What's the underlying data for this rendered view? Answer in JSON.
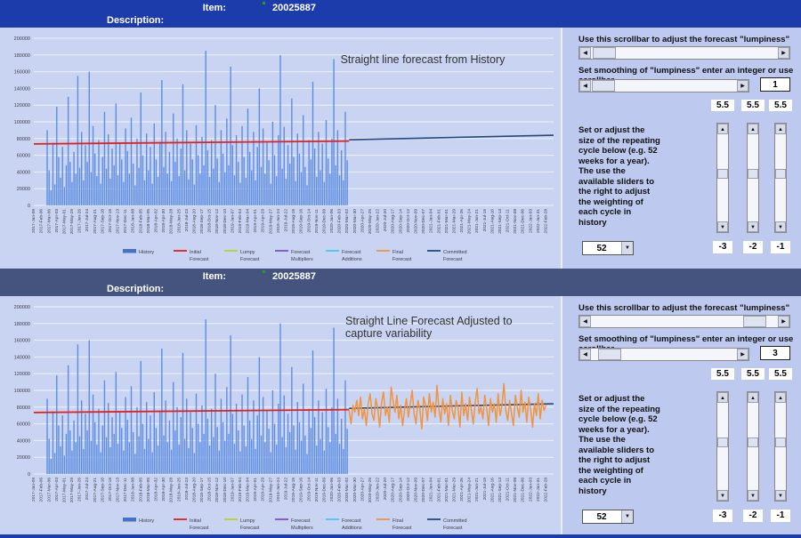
{
  "panels": [
    {
      "header": {
        "item_label": "Item:",
        "item_value": "20025887",
        "desc_label": "Description:",
        "bg": "#1d3cac"
      },
      "controls": {
        "scroll1_text": "Use this scrollbar to adjust the forecast \"lumpiness\"",
        "scroll2_text": "Set smoothing of \"lumpiness\" enter an integer or use scrollbar",
        "smoothing_value": "1",
        "scroll1_pos": 0.01,
        "scroll2_pos": 0.01,
        "weights": [
          "5.5",
          "5.5",
          "5.5"
        ],
        "weight_slider_positions": [
          0.45,
          0.45,
          0.45
        ],
        "offsets": [
          "-3",
          "-2",
          "-1"
        ],
        "instruction_text": "Set or adjust the\nsize of the repeating\ncycle below (e.g. 52\nweeks for a year).\nThe use the\navailable sliders to\nthe right to adjust\nthe weighting of\neach cycle in\nhistory",
        "cycle_value": "52"
      }
    },
    {
      "header": {
        "item_label": "Item:",
        "item_value": "20025887",
        "desc_label": "Description:",
        "bg": "#44547f"
      },
      "controls": {
        "scroll1_text": "Use this scrollbar to adjust the forecast \"lumpiness\"",
        "scroll2_text": "Set smoothing of \"lumpiness\" enter an integer or use scrollbar",
        "smoothing_value": "3",
        "scroll1_pos": 0.93,
        "scroll2_pos": 0.06,
        "weights": [
          "5.5",
          "5.5",
          "5.5"
        ],
        "weight_slider_positions": [
          0.45,
          0.45,
          0.45
        ],
        "offsets": [
          "-3",
          "-2",
          "-1"
        ],
        "instruction_text": "Set or adjust the\nsize of the repeating\ncycle below (e.g. 52\nweeks for a year).\nThe use the\navailable sliders to\nthe right to adjust\nthe weighting of\neach cycle in\nhistory",
        "cycle_value": "52"
      }
    }
  ],
  "chart_data": {
    "type": "bar+line",
    "ylim": [
      0,
      200000
    ],
    "ytick_interval": 20000,
    "weeks_per_tick": 4,
    "grid": true,
    "x_tick_labels": [
      "2017-Jan-09",
      "2017-Feb-06",
      "2017-Mar-06",
      "2017-Apr-03",
      "2017-May-01",
      "2017-May-29",
      "2017-Jun-26",
      "2017-Jul-24",
      "2017-Aug-21",
      "2017-Sep-18",
      "2017-Oct-16",
      "2017-Nov-13",
      "2017-Dec-11",
      "2018-Jan-08",
      "2018-Feb-05",
      "2018-Mar-05",
      "2018-Apr-02",
      "2018-Apr-30",
      "2018-May-28",
      "2018-Jun-25",
      "2018-Jul-23",
      "2018-Aug-20",
      "2018-Sep-17",
      "2018-Oct-15",
      "2018-Nov-12",
      "2018-Dec-10",
      "2019-Jan-07",
      "2019-Feb-04",
      "2019-Mar-04",
      "2019-Apr-01",
      "2019-Apr-29",
      "2019-May-27",
      "2019-Jun-24",
      "2019-Jul-22",
      "2019-Aug-19",
      "2019-Sep-16",
      "2019-Oct-14",
      "2019-Nov-11",
      "2019-Dec-09",
      "2020-Jan-06",
      "2020-Feb-03",
      "2020-Mar-02",
      "2020-Mar-30",
      "2020-Apr-27",
      "2020-May-25",
      "2020-Jun-22",
      "2020-Jul-20",
      "2020-Aug-17",
      "2020-Sep-14",
      "2020-Oct-12",
      "2020-Nov-09",
      "2020-Dec-07",
      "2021-Jan-04",
      "2021-Feb-01",
      "2021-Mar-01",
      "2021-Mar-29",
      "2021-Apr-26",
      "2021-May-24",
      "2021-Jun-21",
      "2021-Jul-19",
      "2021-Aug-16",
      "2021-Sep-13",
      "2021-Oct-11",
      "2021-Nov-08",
      "2021-Dec-06",
      "2022-Jan-03",
      "2022-Jan-31",
      "2022-Feb-28"
    ],
    "history": {
      "name": "History",
      "bar_color": "#5d8de2",
      "start_week": 7,
      "values": [
        90000,
        42000,
        18000,
        75000,
        25000,
        118000,
        58000,
        33000,
        70000,
        22000,
        48000,
        130000,
        52000,
        28000,
        64000,
        38000,
        155000,
        45000,
        88000,
        30000,
        72000,
        52000,
        160000,
        40000,
        95000,
        62000,
        35000,
        78000,
        26000,
        58000,
        112000,
        44000,
        85000,
        32000,
        68000,
        48000,
        122000,
        36000,
        74000,
        55000,
        28000,
        92000,
        65000,
        38000,
        105000,
        50000,
        24000,
        80000,
        45000,
        135000,
        60000,
        30000,
        86000,
        42000,
        70000,
        26000,
        98000,
        55000,
        34000,
        76000,
        150000,
        46000,
        88000,
        38000,
        64000,
        29000,
        110000,
        52000,
        80000,
        35000,
        68000,
        145000,
        42000,
        90000,
        31000,
        74000,
        55000,
        25000,
        96000,
        60000,
        38000,
        82000,
        48000,
        185000,
        66000,
        34000,
        78000,
        44000,
        120000,
        56000,
        28000,
        90000,
        62000,
        40000,
        104000,
        48000,
        166000,
        72000,
        36000,
        84000,
        52000,
        27000,
        95000,
        58000,
        33000,
        116000,
        64000,
        42000,
        88000,
        30000,
        70000,
        140000,
        46000,
        92000,
        38000,
        76000,
        54000,
        26000,
        100000,
        60000,
        35000,
        84000,
        180000,
        44000,
        94000,
        32000,
        72000,
        50000,
        128000,
        58000,
        29000,
        86000,
        62000,
        40000,
        108000,
        46000,
        24000,
        78000,
        55000,
        148000,
        68000,
        34000,
        88000,
        42000,
        74000,
        28000,
        102000,
        56000,
        38000,
        80000,
        175000,
        48000,
        90000,
        36000,
        66000,
        30000,
        112000,
        54000
      ]
    },
    "legend": [
      {
        "label": "History",
        "color": "#4472c4",
        "swatch": "bar"
      },
      {
        "label": "Initial Forecast",
        "color": "#e3211b",
        "swatch": "line"
      },
      {
        "label": "Lumpy Forecast",
        "color": "#b6d42a",
        "swatch": "line"
      },
      {
        "label": "Forecast Multipliers",
        "color": "#7a52c8",
        "swatch": "line"
      },
      {
        "label": "Forecast Additions",
        "color": "#44c6f0",
        "swatch": "line"
      },
      {
        "label": "Final Forecast",
        "color": "#f09441",
        "swatch": "line"
      },
      {
        "label": "Committed Forecast",
        "color": "#26497e",
        "swatch": "line"
      }
    ],
    "charts": [
      {
        "title_lines": [
          "Straight line forecast from History"
        ],
        "series": [
          {
            "name": "History",
            "type": "bar"
          },
          {
            "name": "Initial Forecast",
            "type": "segment",
            "span": "history",
            "y_start": 73500,
            "y_end": 77000,
            "color": "#e3211b",
            "width": 1.8
          },
          {
            "name": "Committed Forecast",
            "type": "segment",
            "span": "forecast",
            "y_start": 78500,
            "y_end": 84000,
            "color": "#26497e",
            "width": 1.6
          }
        ]
      },
      {
        "title_lines": [
          "Straight Line Forecast Adjusted to",
          "capture variability"
        ],
        "series": [
          {
            "name": "History",
            "type": "bar"
          },
          {
            "name": "Initial Forecast",
            "type": "segment",
            "span": "history",
            "y_start": 73500,
            "y_end": 77000,
            "color": "#e3211b",
            "width": 1.8
          },
          {
            "name": "Committed Forecast",
            "type": "segment",
            "span": "forecast",
            "y_start": 78500,
            "y_end": 84000,
            "color": "#26497e",
            "width": 1.6
          },
          {
            "name": "Final Forecast",
            "type": "wiggle",
            "color": "#f09441",
            "width": 1.5,
            "values": [
              76000,
              60000,
              82000,
              74000,
              88000,
              70000,
              92000,
              66000,
              78000,
              58000,
              84000,
              96000,
              72000,
              64000,
              90000,
              78000,
              56000,
              86000,
              98000,
              70000,
              80000,
              62000,
              104000,
              88000,
              74000,
              94000,
              66000,
              82000,
              58000,
              76000,
              90000,
              68000,
              84000,
              100000,
              72000,
              60000,
              88000,
              78000,
              54000,
              92000,
              82000,
              64000,
              96000,
              74000,
              86000,
              68000,
              106000,
              78000,
              62000,
              90000,
              72000,
              84000,
              58000,
              94000,
              76000,
              66000,
              88000,
              80000,
              56000,
              98000,
              70000,
              84000,
              64000,
              92000,
              76000,
              60000,
              86000,
              102000,
              72000,
              80000,
              66000,
              94000,
              78000,
              58000,
              90000,
              74000,
              84000,
              62000,
              96000,
              70000,
              82000,
              108000,
              76000,
              64000,
              88000,
              72000,
              58000,
              94000,
              80000,
              68000,
              100000,
              74000,
              86000,
              62000,
              92000,
              78000,
              56000,
              84000,
              70000,
              96000,
              66000,
              88000,
              76000,
              82000
            ]
          }
        ]
      }
    ]
  }
}
